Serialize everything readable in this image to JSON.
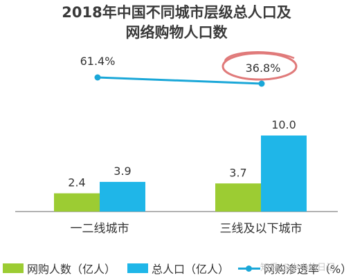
{
  "title_line1": "2018年中国不同城市层级总人口及",
  "title_line2": "网络购物人口数",
  "watermark": "知乎 @小小的日记",
  "colors": {
    "online_bar": "#9ccc33",
    "total_bar": "#1fb6e8",
    "line": "#1aa7d8",
    "highlight_ring": "#e07a7a",
    "axis": "#666666"
  },
  "chart_data": {
    "type": "bar",
    "categories": [
      "一二线城市",
      "三线及以下城市"
    ],
    "series": [
      {
        "name": "网购人数（亿人）",
        "values": [
          2.4,
          3.7
        ],
        "labels": [
          "2.4",
          "3.7"
        ]
      },
      {
        "name": "总人口（亿人）",
        "values": [
          3.9,
          10.0
        ],
        "labels": [
          "3.9",
          "10.0"
        ]
      }
    ],
    "line_series": {
      "name": "网购渗透率（%）",
      "values": [
        61.4,
        36.8
      ],
      "labels": [
        "61.4%",
        "36.8%"
      ]
    },
    "highlight_label": "36.8%",
    "ylim": [
      0,
      11
    ],
    "grid": false,
    "legend_position": "bottom"
  }
}
